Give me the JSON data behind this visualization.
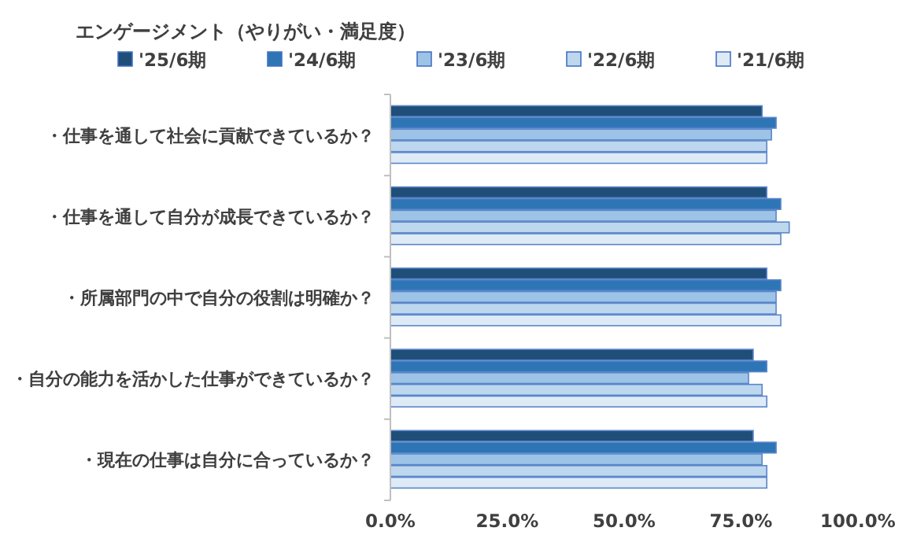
{
  "chart_data": {
    "type": "bar",
    "orientation": "horizontal",
    "title": "エンゲージメント（やりがい・満足度）",
    "categories": [
      "・仕事を通して社会に貢献できているか？",
      "・仕事を通して自分が成長できているか？",
      "・所属部門の中で自分の役割は明確か？",
      "・自分の能力を活かした仕事ができているか？",
      "・現在の仕事は自分に合っているか？"
    ],
    "series": [
      {
        "name": "'25/6期",
        "color": "#1f4e79",
        "values": [
          79.5,
          80.5,
          80.5,
          77.6,
          77.6
        ]
      },
      {
        "name": "'24/6期",
        "color": "#2e75b6",
        "values": [
          82.5,
          83.5,
          83.5,
          80.5,
          82.5
        ]
      },
      {
        "name": "'23/6期",
        "color": "#9dc3e6",
        "values": [
          81.5,
          82.5,
          82.5,
          76.6,
          79.5
        ]
      },
      {
        "name": "'22/6期",
        "color": "#bdd7ee",
        "values": [
          80.5,
          85.3,
          82.5,
          79.5,
          80.5
        ]
      },
      {
        "name": "'21/6期",
        "color": "#deebf7",
        "values": [
          80.5,
          83.5,
          83.5,
          80.5,
          80.5
        ]
      }
    ],
    "xlim": [
      0,
      100
    ],
    "xticks": [
      {
        "value": 0,
        "label": "0.0%"
      },
      {
        "value": 25,
        "label": "25.0%"
      },
      {
        "value": 50,
        "label": "50.0%"
      },
      {
        "value": 75,
        "label": "75.0%"
      },
      {
        "value": 100,
        "label": "100.0%"
      }
    ],
    "legend": "top",
    "grid": false
  }
}
